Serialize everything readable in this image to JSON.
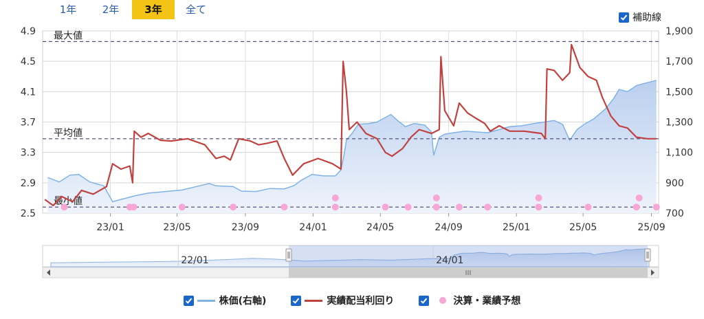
{
  "tabs": [
    {
      "label": "1年",
      "active": false
    },
    {
      "label": "2年",
      "active": false
    },
    {
      "label": "3年",
      "active": true
    },
    {
      "label": "全て",
      "active": false
    }
  ],
  "aux_lines_label": "補助線",
  "aux_lines_checked": true,
  "colors": {
    "price_line": "#7fb2e5",
    "price_fill_top": "#b7cdee",
    "price_fill_bottom": "#eef3fb",
    "yield_line": "#c0423f",
    "events": "#f7a6d6",
    "ref_lines": "#4a3f78",
    "tab_active": "#f3c316",
    "checkbox": "#1a66c9"
  },
  "legend": [
    {
      "label": "株価(右軸)",
      "type": "line",
      "color": "#7fb2e5"
    },
    {
      "label": "実績配当利回り",
      "type": "line",
      "color": "#c0423f"
    },
    {
      "label": "決算・業績予想",
      "type": "dot",
      "color": "#f7a6d6"
    }
  ],
  "navigator": {
    "labels": [
      "22/01",
      "24/01"
    ]
  },
  "chart_data": {
    "type": "line",
    "x_ticks": [
      "23/01",
      "23/05",
      "23/09",
      "24/01",
      "24/05",
      "24/09",
      "25/01",
      "25/05",
      "25/09"
    ],
    "x_range": [
      "2022-09",
      "2025-09"
    ],
    "y_left": {
      "ticks": [
        "2.5",
        "2.9",
        "3.3",
        "3.7",
        "4.1",
        "4.5",
        "4.9"
      ],
      "range": [
        2.5,
        4.9
      ]
    },
    "y_right": {
      "ticks": [
        "700",
        "900",
        "1,100",
        "1,300",
        "1,500",
        "1,700",
        "1,900"
      ],
      "range": [
        700,
        1900
      ]
    },
    "grid": true,
    "reference_lines": [
      {
        "label": "最大値",
        "value": 4.76
      },
      {
        "label": "平均値",
        "value": 3.48
      },
      {
        "label": "最小値",
        "value": 2.58
      }
    ],
    "series": [
      {
        "name": "株価(右軸)",
        "axis": "right",
        "points": [
          [
            "2022-09-10",
            935
          ],
          [
            "2022-10-01",
            905
          ],
          [
            "2022-10-20",
            950
          ],
          [
            "2022-11-05",
            955
          ],
          [
            "2022-11-25",
            905
          ],
          [
            "2022-12-20",
            880
          ],
          [
            "2023-01-05",
            775
          ],
          [
            "2023-01-20",
            790
          ],
          [
            "2023-02-15",
            815
          ],
          [
            "2023-03-10",
            832
          ],
          [
            "2023-04-10",
            842
          ],
          [
            "2023-05-10",
            852
          ],
          [
            "2023-06-10",
            880
          ],
          [
            "2023-06-28",
            895
          ],
          [
            "2023-07-10",
            880
          ],
          [
            "2023-08-10",
            875
          ],
          [
            "2023-08-25",
            845
          ],
          [
            "2023-09-20",
            842
          ],
          [
            "2023-10-15",
            862
          ],
          [
            "2023-11-10",
            860
          ],
          [
            "2023-11-28",
            882
          ],
          [
            "2023-12-10",
            915
          ],
          [
            "2023-12-30",
            955
          ],
          [
            "2024-01-20",
            945
          ],
          [
            "2024-02-10",
            945
          ],
          [
            "2024-02-20",
            985
          ],
          [
            "2024-02-25",
            1070
          ],
          [
            "2024-03-01",
            1180
          ],
          [
            "2024-03-12",
            1230
          ],
          [
            "2024-03-22",
            1285
          ],
          [
            "2024-04-10",
            1290
          ],
          [
            "2024-04-25",
            1300
          ],
          [
            "2024-05-10",
            1330
          ],
          [
            "2024-05-20",
            1350
          ],
          [
            "2024-06-01",
            1310
          ],
          [
            "2024-06-15",
            1270
          ],
          [
            "2024-07-01",
            1290
          ],
          [
            "2024-07-20",
            1280
          ],
          [
            "2024-08-01",
            1235
          ],
          [
            "2024-08-05",
            1080
          ],
          [
            "2024-08-15",
            1200
          ],
          [
            "2024-08-25",
            1220
          ],
          [
            "2024-09-10",
            1230
          ],
          [
            "2024-10-01",
            1240
          ],
          [
            "2024-10-20",
            1235
          ],
          [
            "2024-11-10",
            1230
          ],
          [
            "2024-12-01",
            1250
          ],
          [
            "2024-12-20",
            1270
          ],
          [
            "2025-01-10",
            1275
          ],
          [
            "2025-02-01",
            1290
          ],
          [
            "2025-02-20",
            1300
          ],
          [
            "2025-03-10",
            1310
          ],
          [
            "2025-03-25",
            1285
          ],
          [
            "2025-04-07",
            1180
          ],
          [
            "2025-04-20",
            1250
          ],
          [
            "2025-05-05",
            1290
          ],
          [
            "2025-05-20",
            1320
          ],
          [
            "2025-06-10",
            1385
          ],
          [
            "2025-06-25",
            1455
          ],
          [
            "2025-07-05",
            1515
          ],
          [
            "2025-07-20",
            1500
          ],
          [
            "2025-08-05",
            1540
          ],
          [
            "2025-08-20",
            1555
          ],
          [
            "2025-09-10",
            1575
          ]
        ]
      },
      {
        "name": "実績配当利回り",
        "axis": "left",
        "points": [
          [
            "2022-09-05",
            2.68
          ],
          [
            "2022-09-20",
            2.6
          ],
          [
            "2022-10-05",
            2.72
          ],
          [
            "2022-10-25",
            2.65
          ],
          [
            "2022-11-10",
            2.8
          ],
          [
            "2022-12-01",
            2.75
          ],
          [
            "2022-12-25",
            2.85
          ],
          [
            "2023-01-05",
            3.15
          ],
          [
            "2023-01-20",
            3.08
          ],
          [
            "2023-02-05",
            3.12
          ],
          [
            "2023-02-10",
            2.9
          ],
          [
            "2023-02-13",
            3.58
          ],
          [
            "2023-02-25",
            3.5
          ],
          [
            "2023-03-10",
            3.55
          ],
          [
            "2023-04-01",
            3.46
          ],
          [
            "2023-04-20",
            3.45
          ],
          [
            "2023-05-20",
            3.48
          ],
          [
            "2023-06-20",
            3.4
          ],
          [
            "2023-07-10",
            3.22
          ],
          [
            "2023-07-25",
            3.25
          ],
          [
            "2023-08-05",
            3.2
          ],
          [
            "2023-08-20",
            3.48
          ],
          [
            "2023-09-10",
            3.45
          ],
          [
            "2023-09-25",
            3.4
          ],
          [
            "2023-10-10",
            3.42
          ],
          [
            "2023-10-28",
            3.45
          ],
          [
            "2023-11-10",
            3.22
          ],
          [
            "2023-11-25",
            3.0
          ],
          [
            "2023-12-15",
            3.15
          ],
          [
            "2024-01-10",
            3.22
          ],
          [
            "2024-02-05",
            3.15
          ],
          [
            "2024-02-20",
            3.08
          ],
          [
            "2024-02-24",
            4.5
          ],
          [
            "2024-03-01",
            4.1
          ],
          [
            "2024-03-06",
            3.6
          ],
          [
            "2024-03-20",
            3.7
          ],
          [
            "2024-04-05",
            3.55
          ],
          [
            "2024-04-25",
            3.48
          ],
          [
            "2024-05-10",
            3.3
          ],
          [
            "2024-05-22",
            3.25
          ],
          [
            "2024-06-10",
            3.35
          ],
          [
            "2024-06-25",
            3.5
          ],
          [
            "2024-07-10",
            3.6
          ],
          [
            "2024-08-01",
            3.55
          ],
          [
            "2024-08-15",
            3.6
          ],
          [
            "2024-08-18",
            4.56
          ],
          [
            "2024-08-25",
            3.85
          ],
          [
            "2024-09-10",
            3.65
          ],
          [
            "2024-09-20",
            3.95
          ],
          [
            "2024-10-05",
            3.82
          ],
          [
            "2024-10-20",
            3.75
          ],
          [
            "2024-11-05",
            3.68
          ],
          [
            "2024-11-15",
            3.58
          ],
          [
            "2024-12-01",
            3.65
          ],
          [
            "2024-12-20",
            3.58
          ],
          [
            "2025-01-15",
            3.58
          ],
          [
            "2025-02-15",
            3.55
          ],
          [
            "2025-02-22",
            3.48
          ],
          [
            "2025-02-25",
            4.4
          ],
          [
            "2025-03-10",
            4.38
          ],
          [
            "2025-03-25",
            4.25
          ],
          [
            "2025-04-07",
            4.35
          ],
          [
            "2025-04-10",
            4.72
          ],
          [
            "2025-04-25",
            4.42
          ],
          [
            "2025-05-10",
            4.3
          ],
          [
            "2025-05-25",
            4.25
          ],
          [
            "2025-06-05",
            4.02
          ],
          [
            "2025-06-20",
            3.78
          ],
          [
            "2025-07-05",
            3.65
          ],
          [
            "2025-07-20",
            3.62
          ],
          [
            "2025-08-05",
            3.5
          ],
          [
            "2025-08-25",
            3.48
          ],
          [
            "2025-09-10",
            3.48
          ]
        ]
      }
    ],
    "event_markers": {
      "name": "決算・業績予想",
      "points": [
        [
          "2022-10-10",
          2.58
        ],
        [
          "2023-02-05",
          2.58
        ],
        [
          "2023-02-12",
          2.58
        ],
        [
          "2023-05-10",
          2.58
        ],
        [
          "2023-08-10",
          2.58
        ],
        [
          "2023-11-10",
          2.58
        ],
        [
          "2024-02-10",
          2.58
        ],
        [
          "2024-02-10",
          2.7
        ],
        [
          "2024-05-10",
          2.58
        ],
        [
          "2024-06-20",
          2.58
        ],
        [
          "2024-08-10",
          2.58
        ],
        [
          "2024-08-10",
          2.7
        ],
        [
          "2024-09-20",
          2.58
        ],
        [
          "2024-11-10",
          2.58
        ],
        [
          "2025-02-10",
          2.58
        ],
        [
          "2025-02-10",
          2.7
        ],
        [
          "2025-05-10",
          2.58
        ],
        [
          "2025-08-05",
          2.58
        ],
        [
          "2025-08-10",
          2.7
        ],
        [
          "2025-09-10",
          2.58
        ]
      ]
    }
  }
}
